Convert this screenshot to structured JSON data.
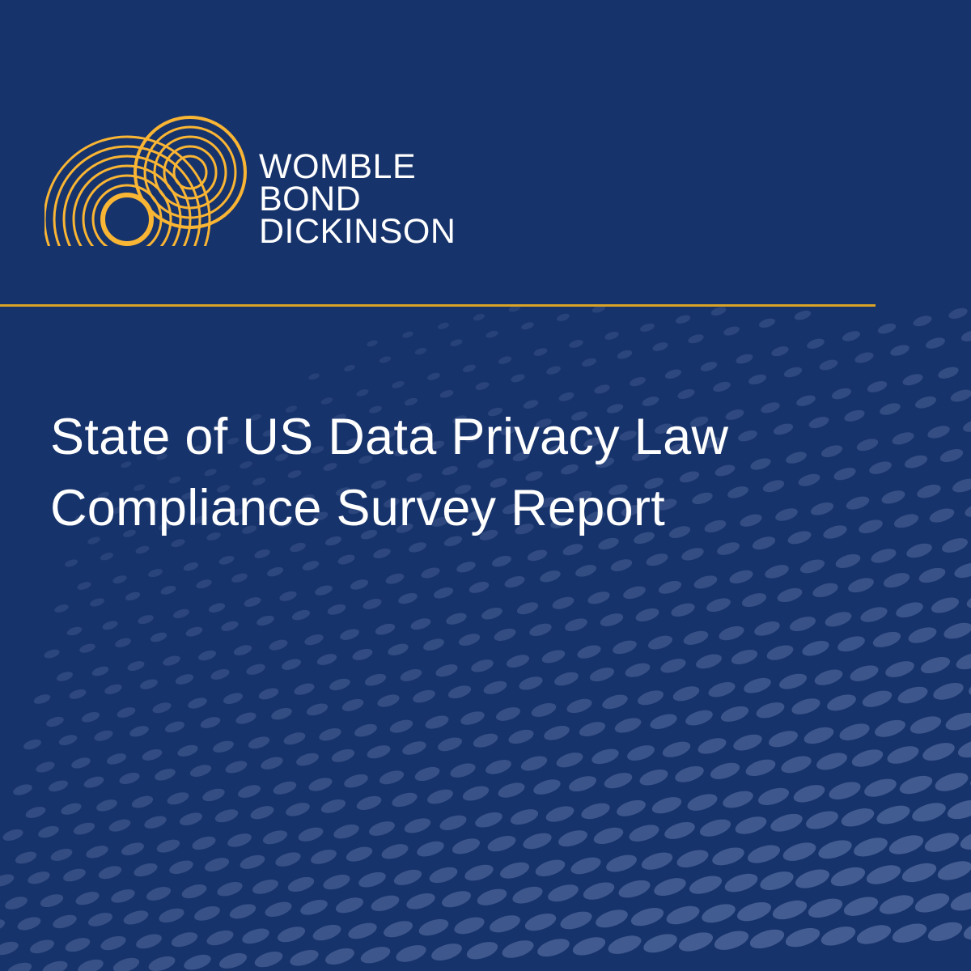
{
  "brand": {
    "name_lines": [
      "WOMBLE",
      "BOND",
      "DICKINSON"
    ],
    "logo_icon": "concentric-circles-logo"
  },
  "title_lines": [
    "State of US Data Privacy Law",
    "Compliance Survey Report"
  ],
  "colors": {
    "background": "#17336b",
    "accent_gold": "#f9b534",
    "rule": "#d9a326",
    "text": "#ffffff"
  }
}
